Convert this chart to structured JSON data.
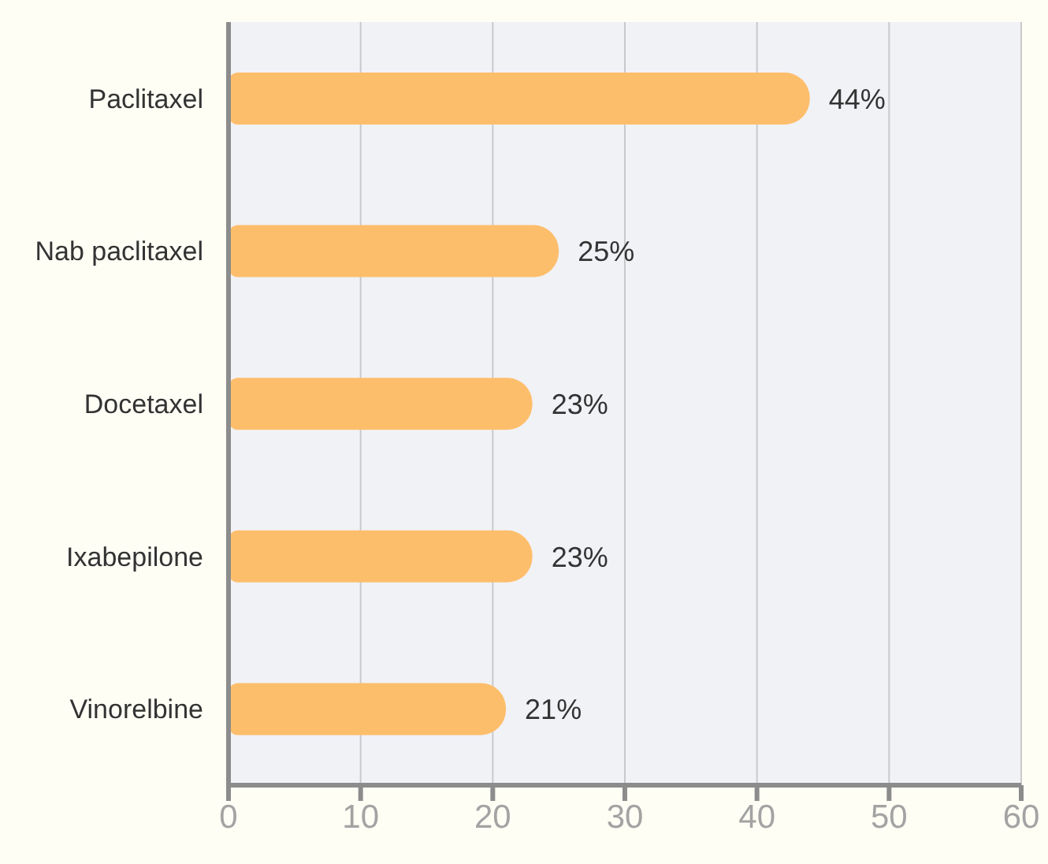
{
  "chart_data": {
    "type": "bar",
    "orientation": "horizontal",
    "categories": [
      "Paclitaxel",
      "Nab paclitaxel",
      "Docetaxel",
      "Ixabepilone",
      "Vinorelbine"
    ],
    "values": [
      44,
      25,
      23,
      23,
      21
    ],
    "value_labels": [
      "44%",
      "25%",
      "23%",
      "23%",
      "21%"
    ],
    "color": "#fdbe6c",
    "xlim": [
      0,
      60
    ],
    "xticks": [
      0,
      10,
      20,
      30,
      40,
      50,
      60
    ],
    "grid": "x"
  }
}
